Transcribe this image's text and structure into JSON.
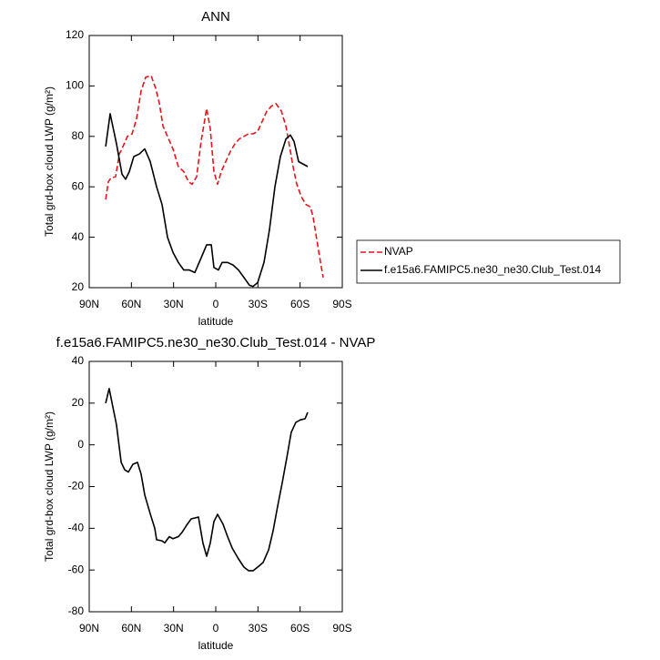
{
  "chart_data": [
    {
      "type": "line",
      "title": "ANN",
      "xlabel": "latitude",
      "ylabel": "Total grd-box cloud LWP (g/m²)",
      "xlim": [
        90,
        -90
      ],
      "xticks": [
        {
          "value": 90,
          "label": "90N"
        },
        {
          "value": 60,
          "label": "60N"
        },
        {
          "value": 30,
          "label": "30N"
        },
        0,
        {
          "value": -30,
          "label": "30S"
        },
        {
          "value": -60,
          "label": "60S"
        },
        {
          "value": -90,
          "label": "90S"
        }
      ],
      "ylim": [
        20,
        120
      ],
      "yticks": [
        20,
        40,
        60,
        80,
        100,
        120
      ],
      "legend": "right",
      "series": [
        {
          "name": "NVAP",
          "color": "#e8141c",
          "dashed": true,
          "x": [
            78.3,
            76.4,
            74.5,
            71.2,
            68.6,
            66.0,
            62.8,
            59.5,
            56.3,
            53.1,
            49.8,
            45.9,
            42.7,
            40.1,
            37.5,
            34.3,
            30.4,
            26.6,
            22.7,
            19.4,
            16.8,
            13.6,
            10.4,
            6.5,
            3.9,
            1.3,
            -1.3,
            -3.9,
            -7.1,
            -10.4,
            -13.6,
            -16.8,
            -20.1,
            -23.3,
            -26.6,
            -29.8,
            -33.1,
            -36.3,
            -39.6,
            -42.8,
            -46.7,
            -49.9,
            -52.5,
            -55.0,
            -57.6,
            -60.9,
            -64.1,
            -67.3,
            -69.3,
            -71.9,
            -74.5,
            -76.4
          ],
          "values": [
            55,
            62,
            63.5,
            64,
            73,
            76,
            80,
            81,
            87,
            98,
            103.5,
            104,
            99,
            93,
            84,
            80,
            75,
            68,
            66,
            62,
            61,
            64,
            78,
            91,
            83,
            66,
            61,
            66,
            70,
            74,
            77,
            79,
            80,
            81,
            81,
            82,
            86,
            90,
            92,
            93,
            90,
            84,
            76,
            68,
            61,
            56,
            53,
            52,
            48,
            39,
            30,
            24
          ]
        },
        {
          "name": "f.e15a6.FAMIPC5.ne30_ne30.Club_Test.014",
          "color": "#000000",
          "dashed": false,
          "x": [
            78.3,
            75.1,
            70.6,
            66.7,
            64.1,
            61.5,
            58.3,
            54.4,
            50.5,
            46.6,
            42.1,
            38.2,
            34.3,
            30.4,
            26.6,
            22.7,
            18.8,
            14.9,
            11.0,
            6.5,
            3.2,
            1.3,
            -1.9,
            -4.5,
            -8.4,
            -12.3,
            -16.2,
            -20.1,
            -23.9,
            -26.5,
            -29.8,
            -34.3,
            -38.2,
            -42.1,
            -46.0,
            -49.9,
            -53.1,
            -55.7,
            -58.9,
            -65.4
          ],
          "values": [
            76,
            89,
            77,
            65,
            63,
            66,
            72,
            73,
            75,
            70,
            60,
            53,
            40,
            34,
            30,
            27,
            27,
            26,
            31,
            37,
            37,
            28,
            27,
            30,
            30,
            29,
            27,
            24,
            21,
            20.5,
            22,
            30,
            43,
            60,
            72,
            79,
            80.5,
            78,
            70,
            68
          ]
        }
      ]
    },
    {
      "type": "line",
      "title": "f.e15a6.FAMIPC5.ne30_ne30.Club_Test.014 - NVAP",
      "xlabel": "latitude",
      "ylabel": "Total grd-box cloud LWP (g/m²)",
      "xlim": [
        90,
        -90
      ],
      "xticks": [
        {
          "value": 90,
          "label": "90N"
        },
        {
          "value": 60,
          "label": "60N"
        },
        {
          "value": 30,
          "label": "30N"
        },
        0,
        {
          "value": -30,
          "label": "30S"
        },
        {
          "value": -60,
          "label": "60S"
        },
        {
          "value": -90,
          "label": "90S"
        }
      ],
      "ylim": [
        -80,
        40
      ],
      "yticks": [
        -80,
        -60,
        -40,
        -20,
        0,
        20,
        40
      ],
      "series": [
        {
          "color": "#000000",
          "dashed": false,
          "x": [
            78.3,
            75.8,
            70.6,
            67.3,
            64.7,
            62.1,
            58.9,
            55.7,
            53.1,
            50.5,
            46.6,
            43.4,
            42.1,
            38.2,
            36.3,
            33.0,
            30.4,
            26.6,
            24.0,
            20.7,
            17.5,
            12.3,
            9.1,
            6.5,
            3.9,
            1.3,
            -1.3,
            -5.2,
            -8.4,
            -11.7,
            -16.2,
            -20.1,
            -23.3,
            -26.6,
            -29.8,
            -33.7,
            -37.6,
            -40.8,
            -44.0,
            -47.3,
            -50.5,
            -53.7,
            -57.0,
            -60.2,
            -63.5,
            -65.4
          ],
          "values": [
            20,
            27,
            9.5,
            -8.4,
            -12,
            -13,
            -9.3,
            -8.4,
            -14,
            -24,
            -33,
            -40,
            -45.5,
            -46,
            -47,
            -44,
            -45,
            -44,
            -42,
            -38.5,
            -35.5,
            -34.6,
            -47,
            -53.4,
            -47,
            -36.8,
            -33.3,
            -38,
            -44,
            -49.5,
            -54.7,
            -58.6,
            -60.3,
            -60.3,
            -58.6,
            -56.4,
            -50.3,
            -41.2,
            -29.4,
            -18,
            -6.3,
            6,
            10.8,
            12,
            12.5,
            15.6
          ]
        }
      ]
    }
  ]
}
